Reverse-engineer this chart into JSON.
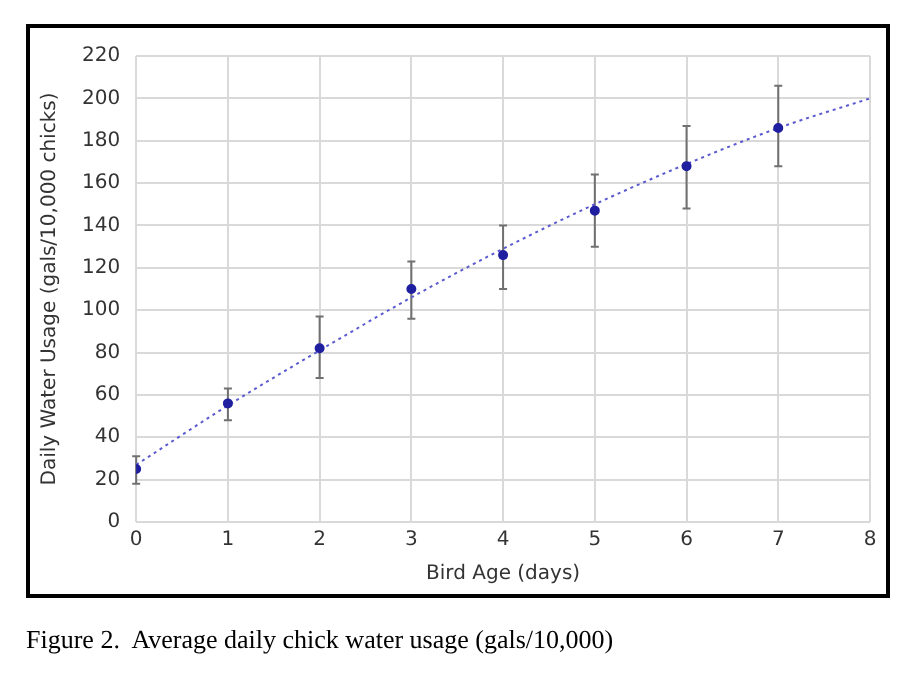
{
  "chart_data": {
    "type": "scatter",
    "xlabel": "Bird Age (days)",
    "ylabel": "Daily Water Usage (gals/10,000 chicks)",
    "xlim": [
      0,
      8
    ],
    "xticks": [
      0,
      1,
      2,
      3,
      4,
      5,
      6,
      7,
      8
    ],
    "ylim": [
      0,
      220
    ],
    "yticks": [
      0,
      20,
      40,
      60,
      80,
      100,
      120,
      140,
      160,
      180,
      200,
      220
    ],
    "grid": true,
    "legend": false,
    "marker": "circle",
    "series": [
      {
        "color": "#1f1fa0",
        "x": [
          0,
          1,
          2,
          3,
          4,
          5,
          6,
          7
        ],
        "values": [
          25,
          56,
          82,
          110,
          126,
          147,
          168,
          186
        ],
        "errors": [
          [
            18,
            31
          ],
          [
            48,
            63
          ],
          [
            68,
            97
          ],
          [
            96,
            123
          ],
          [
            110,
            140
          ],
          [
            130,
            164
          ],
          [
            148,
            187
          ],
          [
            168,
            206
          ]
        ]
      },
      {
        "type": "line",
        "color": "#5a5ad0",
        "line_style": "dotted",
        "marker": "none",
        "x": [
          0,
          1,
          2,
          3,
          4,
          5,
          6,
          7,
          8
        ],
        "values": [
          27,
          55,
          81,
          106,
          129,
          150,
          169,
          186,
          200
        ]
      }
    ],
    "annotations": [
      "Figure 2.  Average daily chick water usage (gals/10,000)"
    ]
  }
}
